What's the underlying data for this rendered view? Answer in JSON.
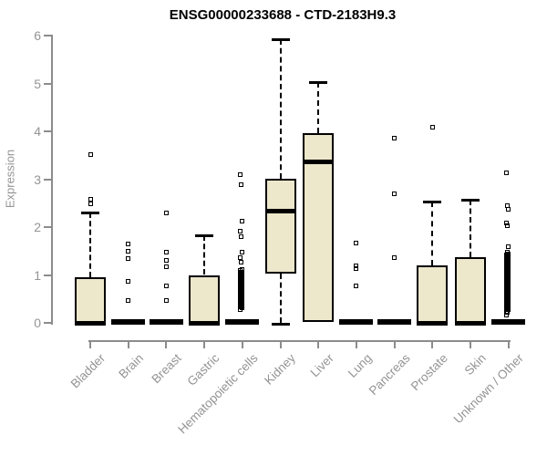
{
  "chart_data": {
    "type": "boxplot",
    "title": "ENSG00000233688 - CTD-2183H9.3",
    "xlabel": "",
    "ylabel": "Expression",
    "ylim": [
      0,
      6
    ],
    "yticks": [
      0,
      1,
      2,
      3,
      4,
      5,
      6
    ],
    "grid": "off",
    "box_fill_color": "#EDE7CB",
    "box_border_color": "#000000",
    "axis_color": "#8c8c8c",
    "label_color": "#949494",
    "categories": [
      "Bladder",
      "Brain",
      "Breast",
      "Gastric",
      "Hematopoietic cells",
      "Kidney",
      "Liver",
      "Lung",
      "Pancreas",
      "Prostate",
      "Skin",
      "Unknown / Other"
    ],
    "series": [
      {
        "name": "Bladder",
        "q1": 0,
        "median": 0,
        "q3": 0.95,
        "whisker_low": 0,
        "whisker_high": 2.3,
        "outliers": [
          2.48,
          2.58,
          3.52
        ]
      },
      {
        "name": "Brain",
        "q1": 0,
        "median": 0,
        "q3": 0,
        "whisker_low": 0,
        "whisker_high": 0,
        "outliers": [
          1.64,
          1.5,
          1.35,
          0.86,
          0.46
        ]
      },
      {
        "name": "Breast",
        "q1": 0,
        "median": 0,
        "q3": 0,
        "whisker_low": 0,
        "whisker_high": 0,
        "outliers": [
          2.3,
          1.47,
          1.31,
          1.18,
          0.78,
          0.46
        ]
      },
      {
        "name": "Gastric",
        "q1": 0,
        "median": 0,
        "q3": 1.0,
        "whisker_low": 0,
        "whisker_high": 1.83,
        "outliers": []
      },
      {
        "name": "Hematopoietic cells",
        "q1": 0,
        "median": 0,
        "q3": 0,
        "whisker_low": 0,
        "whisker_high": 0,
        "outliers": [
          3.09,
          2.88,
          2.12,
          1.92,
          1.8,
          1.47,
          1.37,
          1.26
        ],
        "outlier_strip": {
          "from": 1.12,
          "to": 0.28,
          "step": 0.03
        }
      },
      {
        "name": "Kidney",
        "q1": 1.03,
        "median": 2.33,
        "q3": 3.01,
        "whisker_low": 0,
        "whisker_high": 5.93,
        "outliers": []
      },
      {
        "name": "Liver",
        "q1": 0.02,
        "median": 3.35,
        "q3": 3.97,
        "whisker_low": 0,
        "whisker_high": 5.03,
        "outliers": []
      },
      {
        "name": "Lung",
        "q1": 0,
        "median": 0,
        "q3": 0,
        "whisker_low": 0,
        "whisker_high": 0,
        "outliers": [
          1.66,
          1.19,
          1.13,
          0.78
        ]
      },
      {
        "name": "Pancreas",
        "q1": 0,
        "median": 0,
        "q3": 0,
        "whisker_low": 0,
        "whisker_high": 0,
        "outliers": [
          3.85,
          2.69,
          1.37
        ]
      },
      {
        "name": "Prostate",
        "q1": 0,
        "median": 0,
        "q3": 1.2,
        "whisker_low": 0,
        "whisker_high": 2.53,
        "outliers": [
          4.08
        ]
      },
      {
        "name": "Skin",
        "q1": 0,
        "median": 0,
        "q3": 1.38,
        "whisker_low": 0,
        "whisker_high": 2.57,
        "outliers": []
      },
      {
        "name": "Unknown / Other",
        "q1": 0,
        "median": 0,
        "q3": 0,
        "whisker_low": 0,
        "whisker_high": 0,
        "outliers": [
          3.14,
          2.45,
          2.38,
          2.08,
          2.02,
          1.6,
          0.17
        ],
        "outlier_strip": {
          "from": 1.47,
          "to": 0.21,
          "step": 0.03
        }
      }
    ]
  }
}
